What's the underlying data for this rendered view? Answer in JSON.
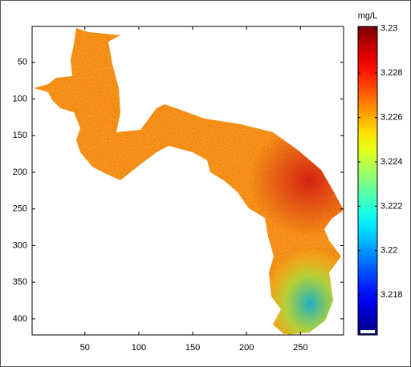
{
  "chart_data": {
    "type": "heatmap",
    "colorbar_label": "mg/L",
    "xlim": [
      1,
      290
    ],
    "xticks": [
      50,
      100,
      150,
      200,
      250
    ],
    "ylim": [
      1,
      422
    ],
    "yticks": [
      50,
      100,
      150,
      200,
      250,
      300,
      350,
      400
    ],
    "y_reversed": true,
    "clim": [
      3.2162,
      3.2301
    ],
    "cticks": [
      3.218,
      3.22,
      3.222,
      3.224,
      3.226,
      3.228,
      3.23
    ],
    "colormap": "jet"
  }
}
